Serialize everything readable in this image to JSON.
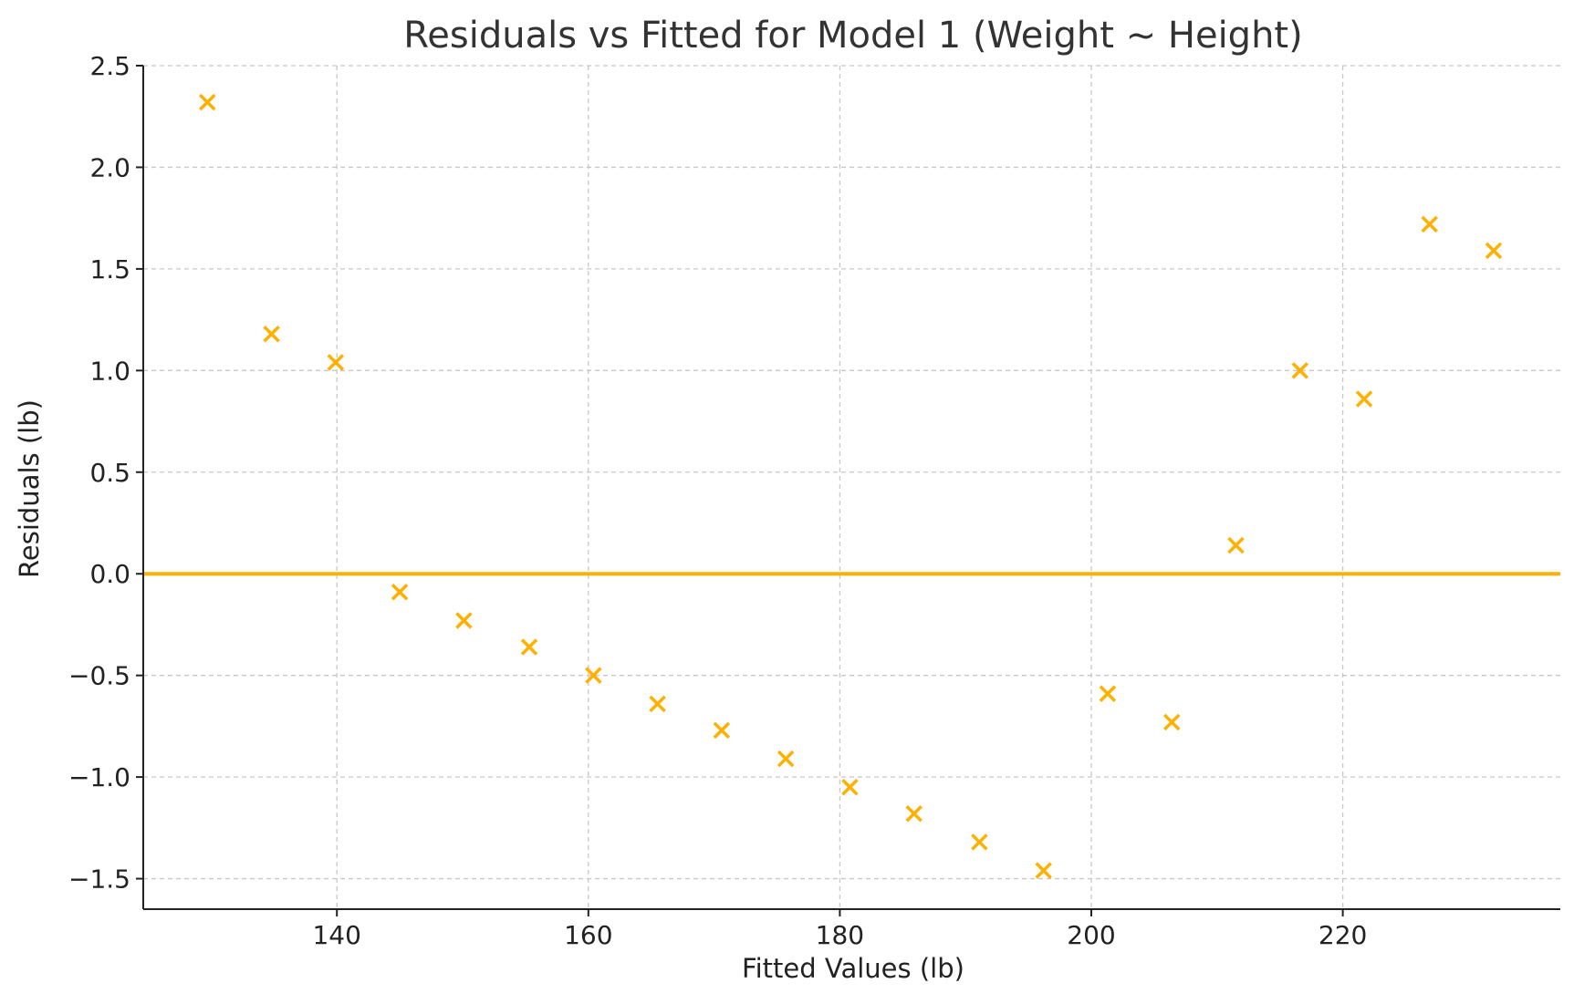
{
  "chart_data": {
    "type": "scatter",
    "title": "Residuals vs Fitted for Model 1 (Weight ~ Height)",
    "xlabel": "Fitted Values (lb)",
    "ylabel": "Residuals (lb)",
    "xlim": [
      124.6,
      237.3
    ],
    "ylim": [
      -1.65,
      2.5
    ],
    "xticks": [
      140,
      160,
      180,
      200,
      220
    ],
    "yticks": [
      2.5,
      2.0,
      1.5,
      1.0,
      0.5,
      0.0,
      -0.5,
      -1.0,
      -1.5
    ],
    "grid": true,
    "marker": "x",
    "marker_color": "#FFB000",
    "reference_line": {
      "y": 0,
      "color": "#FFB000"
    },
    "series": [
      {
        "x": [
          129.7,
          134.8,
          139.9,
          145.0,
          150.1,
          155.3,
          160.4,
          165.5,
          170.6,
          175.7,
          180.8,
          185.9,
          191.1,
          196.2,
          201.3,
          206.4,
          211.5,
          216.6,
          221.7,
          226.9,
          232.0
        ],
        "y": [
          2.32,
          1.18,
          1.04,
          -0.09,
          -0.23,
          -0.36,
          -0.5,
          -0.64,
          -0.77,
          -0.91,
          -1.05,
          -1.18,
          -1.32,
          -1.46,
          -0.59,
          -0.73,
          0.14,
          1.0,
          0.86,
          1.72,
          1.59
        ]
      }
    ]
  }
}
